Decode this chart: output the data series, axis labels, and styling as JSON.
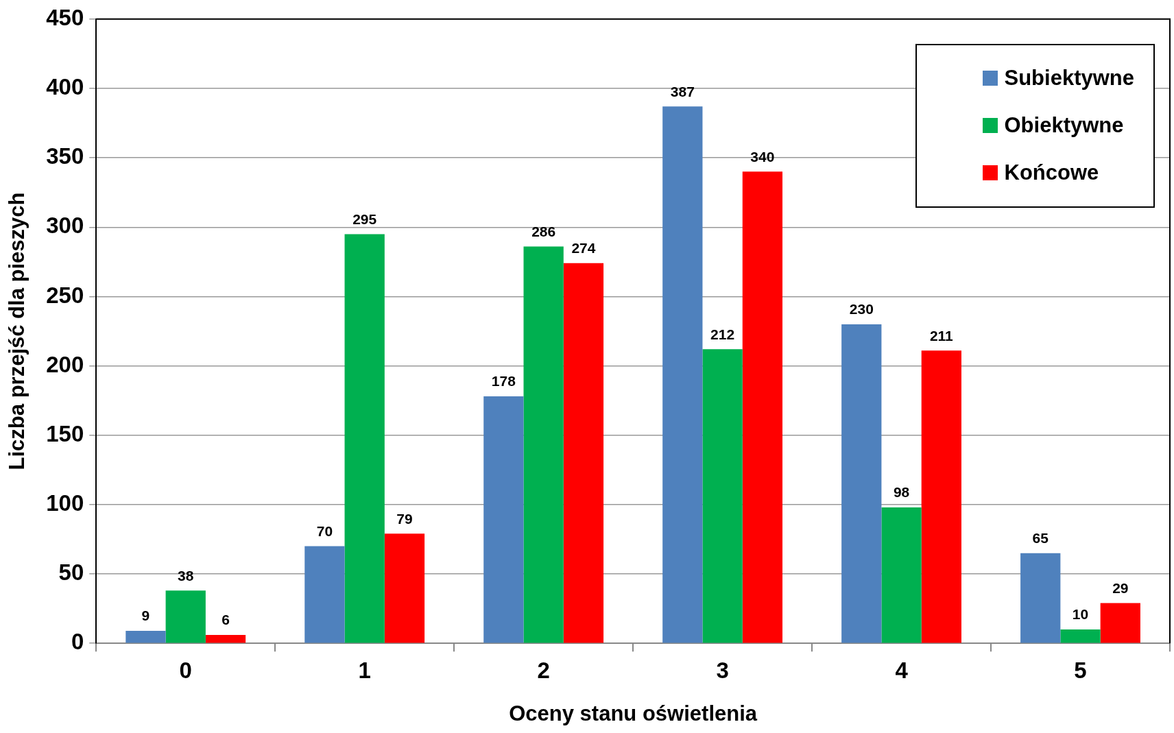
{
  "chart_data": {
    "type": "bar",
    "xlabel": "Oceny stanu oświetlenia",
    "ylabel": "Liczba przejść dla pieszych",
    "categories": [
      "0",
      "1",
      "2",
      "3",
      "4",
      "5"
    ],
    "series": [
      {
        "name": "Subiektywne",
        "color": "#4f81bd",
        "values": [
          9,
          70,
          178,
          387,
          230,
          65
        ]
      },
      {
        "name": "Obiektywne",
        "color": "#00b050",
        "values": [
          38,
          295,
          286,
          212,
          98,
          10
        ]
      },
      {
        "name": "Końcowe",
        "color": "#ff0000",
        "values": [
          6,
          79,
          274,
          340,
          211,
          29
        ]
      }
    ],
    "ylim": [
      0,
      450
    ],
    "yticks": [
      0,
      50,
      100,
      150,
      200,
      250,
      300,
      350,
      400,
      450
    ],
    "grid": "y",
    "legend": "top right",
    "data_labels": true
  }
}
